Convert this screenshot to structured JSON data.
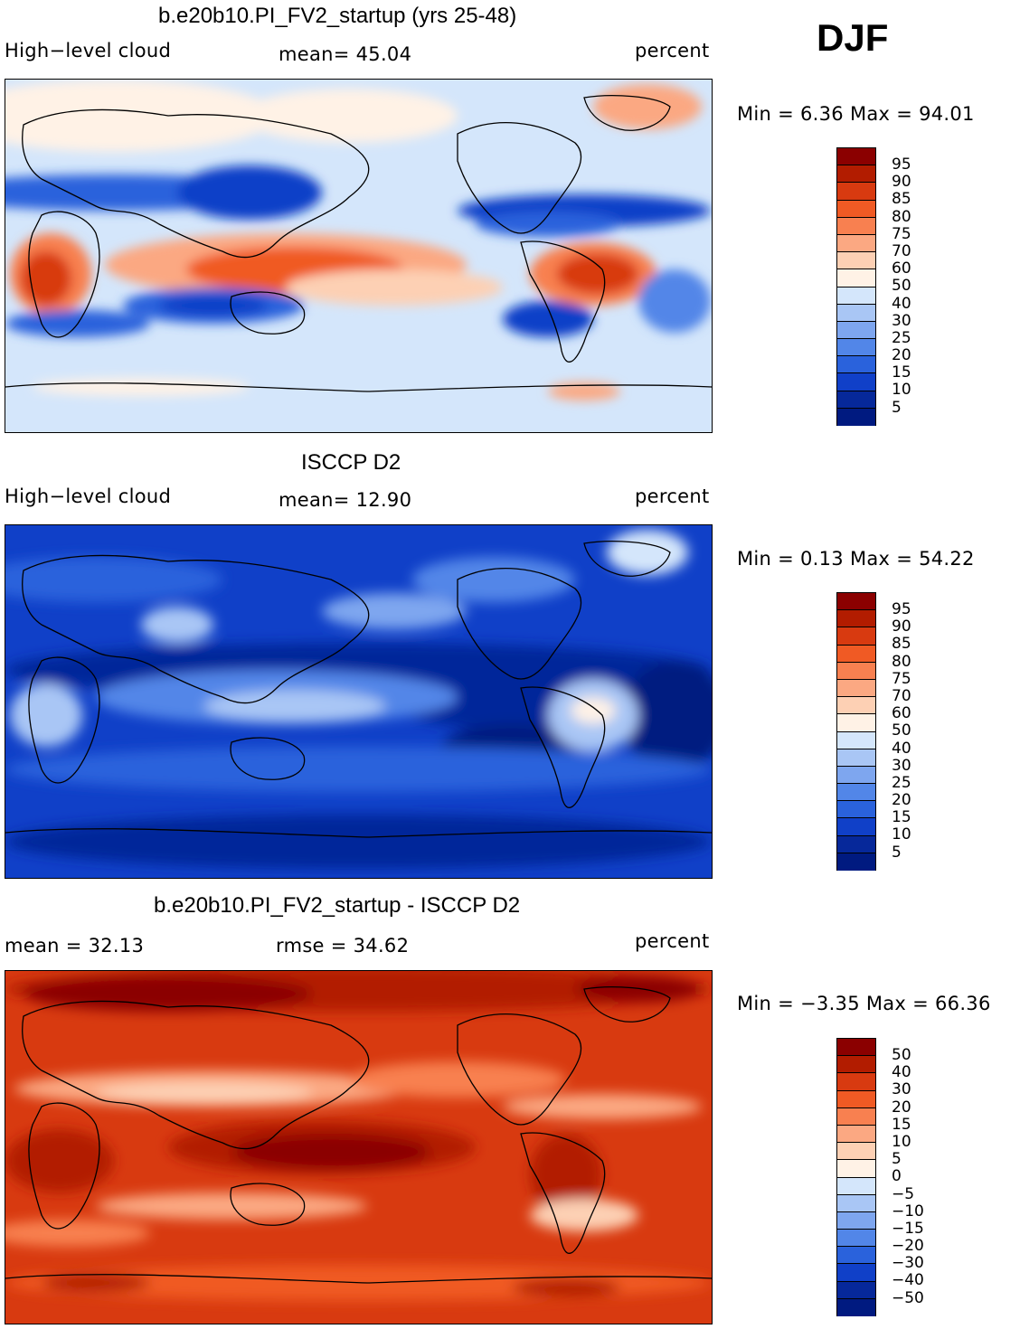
{
  "season": "DJF",
  "panels": [
    {
      "title": "b.e20b10.PI_FV2_startup (yrs 25-48)",
      "left_label": "High−level cloud",
      "center_label": "mean=   45.04",
      "right_label": "percent",
      "minmax": "Min =    6.36  Max =   94.01",
      "colorbar_labels": [
        "95",
        "90",
        "85",
        "80",
        "75",
        "70",
        "60",
        "50",
        "40",
        "30",
        "25",
        "20",
        "15",
        "10",
        "5"
      ],
      "colorbar_colors": [
        "#8b0000",
        "#b21c00",
        "#d83a10",
        "#f05a24",
        "#f88050",
        "#fba882",
        "#fdd0b4",
        "#fff2e6",
        "#d4e6fb",
        "#a9c6f5",
        "#7ea6ef",
        "#5286e8",
        "#2a62dc",
        "#1040c8",
        "#06289a",
        "#001a80"
      ]
    },
    {
      "title": "ISCCP D2",
      "left_label": "High−level cloud",
      "center_label": "mean=   12.90",
      "right_label": "percent",
      "minmax": "Min =    0.13  Max =   54.22",
      "colorbar_labels": [
        "95",
        "90",
        "85",
        "80",
        "75",
        "70",
        "60",
        "50",
        "40",
        "30",
        "25",
        "20",
        "15",
        "10",
        "5"
      ],
      "colorbar_colors": [
        "#8b0000",
        "#b21c00",
        "#d83a10",
        "#f05a24",
        "#f88050",
        "#fba882",
        "#fdd0b4",
        "#fff2e6",
        "#d4e6fb",
        "#a9c6f5",
        "#7ea6ef",
        "#5286e8",
        "#2a62dc",
        "#1040c8",
        "#06289a",
        "#001a80"
      ]
    },
    {
      "title": "b.e20b10.PI_FV2_startup - ISCCP D2",
      "left_label": "mean =   32.13",
      "center_label": "rmse =   34.62",
      "right_label": "percent",
      "minmax": "Min =   −3.35  Max =   66.36",
      "colorbar_labels": [
        "50",
        "40",
        "30",
        "20",
        "15",
        "10",
        "5",
        "0",
        "−5",
        "−10",
        "−15",
        "−20",
        "−30",
        "−40",
        "−50"
      ],
      "colorbar_colors": [
        "#8b0000",
        "#b21c00",
        "#d83a10",
        "#f05a24",
        "#f88050",
        "#fba882",
        "#fdd0b4",
        "#fff2e6",
        "#d4e6fb",
        "#a9c6f5",
        "#7ea6ef",
        "#5286e8",
        "#2a62dc",
        "#1040c8",
        "#06289a",
        "#001a80"
      ]
    }
  ]
}
